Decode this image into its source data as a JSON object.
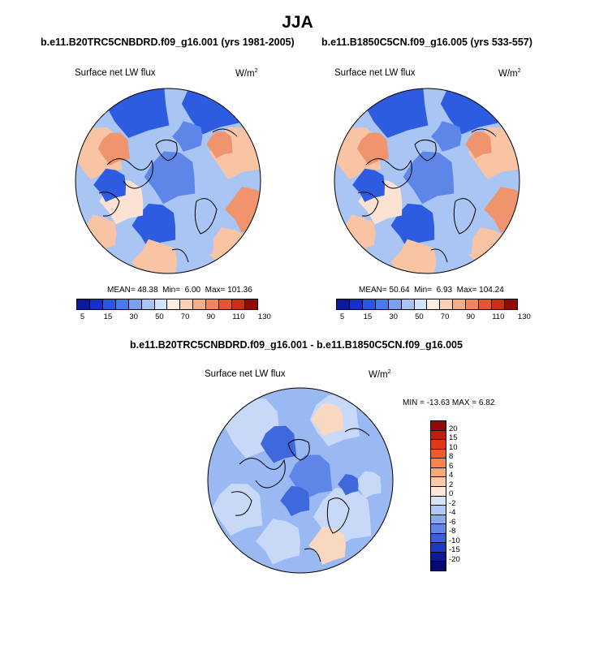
{
  "figure": {
    "title": "JJA",
    "variable": "Surface net LW flux",
    "units_base": "W/m",
    "units_exp": "2"
  },
  "panels": [
    {
      "title": "b.e11.B20TRC5CNBDRD.f09_g16.001 (yrs 1981-2005)",
      "mean_label": "MEAN=",
      "mean": "48.38",
      "min_label": "Min=",
      "min": "6.00",
      "max_label": "Max=",
      "max": "101.36"
    },
    {
      "title": "b.e11.B1850C5CN.f09_g16.005 (yrs 533-557)",
      "mean_label": "MEAN=",
      "mean": "50.64",
      "min_label": "Min=",
      "min": "6.93",
      "max_label": "Max=",
      "max": "104.24"
    }
  ],
  "diff_panel": {
    "title": "b.e11.B20TRC5CNBDRD.f09_g16.001 - b.e11.B1850C5CN.f09_g16.005",
    "stats": "MIN = -13.63 MAX =   6.82"
  },
  "colorbar_main": {
    "labels": [
      "5",
      "15",
      "30",
      "50",
      "70",
      "90",
      "110",
      "130"
    ],
    "colors": [
      "#0a1a9a",
      "#1530c8",
      "#2a56e0",
      "#4a7ae8",
      "#7aa0ee",
      "#a8c4f4",
      "#d2e2fa",
      "#fdeee2",
      "#fbd0b4",
      "#f7ac8a",
      "#f08464",
      "#e25636",
      "#c8301a",
      "#8f0c08"
    ]
  },
  "colorbar_diff": {
    "labels": [
      "20",
      "15",
      "10",
      "8",
      "6",
      "4",
      "2",
      "0",
      "-2",
      "-4",
      "-6",
      "-8",
      "-10",
      "-15",
      "-20"
    ],
    "colors": [
      "#8f0c08",
      "#c01d10",
      "#e23818",
      "#f25a2c",
      "#f7844e",
      "#f9a87a",
      "#fbcaa8",
      "#fde8d8",
      "#d6e4fa",
      "#b0c8f4",
      "#88aaee",
      "#5e86e6",
      "#3660dc",
      "#1a3ac4",
      "#0a1a9a",
      "#060a70"
    ]
  },
  "map_colors": {
    "ocean_main": "#a9c5f4",
    "deep_blue": "#2e5ce0",
    "mid_blue": "#5e86e8",
    "land_warm": "#f8c4a4",
    "land_hot": "#f0946e",
    "land_pale": "#fbe2d2",
    "diff_base": "#9ab8f2",
    "diff_light": "#c7d9f7",
    "diff_dark": "#3e68dc",
    "diff_warm": "#f9d8c2",
    "coast": "#000000"
  }
}
